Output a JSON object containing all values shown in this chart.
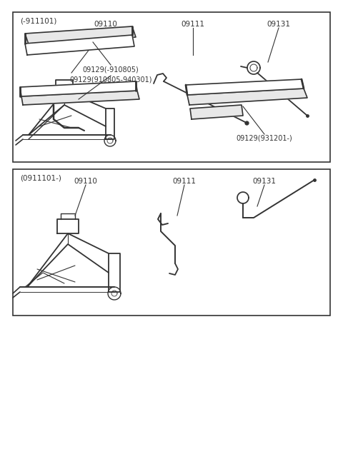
{
  "bg_color": "#ffffff",
  "line_color": "#333333",
  "box1_label": "(-911101)",
  "box2_label": "(0911101-)",
  "label_09110_1": "09110",
  "label_09111_1": "09111",
  "label_09131_1": "09131",
  "label_09110_2": "09110",
  "label_09111_2": "09111",
  "label_09131_2": "09131",
  "label_09129_a": "09129(-910805)",
  "label_09129_b": "09129(910805-940301)",
  "label_09129_c": "09129(931201-)",
  "font_size": 7.5
}
